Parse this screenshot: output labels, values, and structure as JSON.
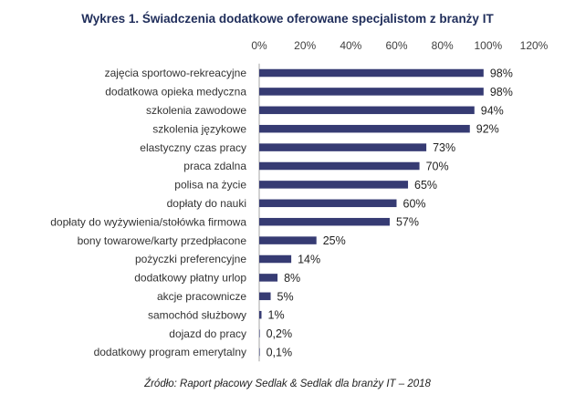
{
  "chart_data": {
    "type": "bar",
    "orientation": "horizontal",
    "title": "Wykres 1. Świadczenia dodatkowe oferowane specjalistom z branży IT",
    "source": "Źródło: Raport płacowy Sedlak & Sedlak dla branży IT – 2018",
    "xlim": [
      0,
      120
    ],
    "x_ticks": [
      {
        "value": 0,
        "label": "0%"
      },
      {
        "value": 20,
        "label": "20%"
      },
      {
        "value": 40,
        "label": "40%"
      },
      {
        "value": 60,
        "label": "60%"
      },
      {
        "value": 80,
        "label": "80%"
      },
      {
        "value": 100,
        "label": "100%"
      },
      {
        "value": 120,
        "label": "120%"
      }
    ],
    "x_axis_position": "top",
    "grid": false,
    "bar_color": "#363b73",
    "categories": [
      "zajęcia sportowo-rekreacyjne",
      "dodatkowa opieka medyczna",
      "szkolenia zawodowe",
      "szkolenia językowe",
      "elastyczny czas pracy",
      "praca zdalna",
      "polisa na życie",
      "dopłaty do nauki",
      "dopłaty do wyżywienia/stołówka firmowa",
      "bony towarowe/karty przedpłacone",
      "pożyczki preferencyjne",
      "dodatkowy płatny urlop",
      "akcje pracownicze",
      "samochód służbowy",
      "dojazd do pracy",
      "dodatkowy program emerytalny"
    ],
    "values": [
      98,
      98,
      94,
      92,
      73,
      70,
      65,
      60,
      57,
      25,
      14,
      8,
      5,
      1,
      0.2,
      0.1
    ],
    "value_labels": [
      "98%",
      "98%",
      "94%",
      "92%",
      "73%",
      "70%",
      "65%",
      "60%",
      "57%",
      "25%",
      "14%",
      "8%",
      "5%",
      "1%",
      "0,2%",
      "0,1%"
    ]
  }
}
